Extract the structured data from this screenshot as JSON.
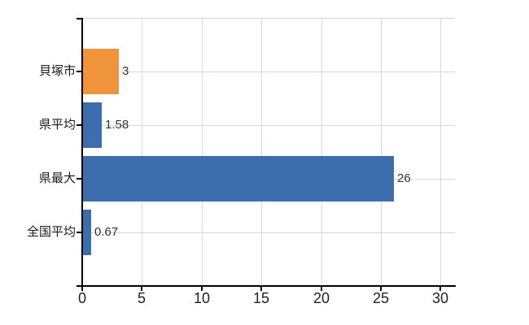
{
  "page": {
    "background": "#ffffff"
  },
  "chart_data": {
    "type": "bar",
    "orientation": "horizontal",
    "title": "",
    "xlabel": "",
    "ylabel": "",
    "categories": [
      "貝塚市",
      "県平均",
      "県最大",
      "全国平均"
    ],
    "values": [
      3,
      1.58,
      26,
      0.67
    ],
    "value_labels": [
      "3",
      "1.58",
      "26",
      "0.67"
    ],
    "bar_colors": [
      "#f0943c",
      "#3c6eae",
      "#3c6eae",
      "#3c6eae"
    ],
    "x_ticks": [
      0,
      5,
      10,
      15,
      20,
      25,
      30
    ],
    "x_tick_labels": [
      "0",
      "5",
      "10",
      "15",
      "20",
      "25",
      "30"
    ],
    "xlim": [
      0,
      31.2
    ],
    "grid": true,
    "legend": false,
    "colors": {
      "axis": "#000000",
      "grid": "#d8d8d8",
      "bar_default": "#3c6eae",
      "bar_highlight": "#f0943c",
      "text": "#1a1a1a"
    }
  }
}
